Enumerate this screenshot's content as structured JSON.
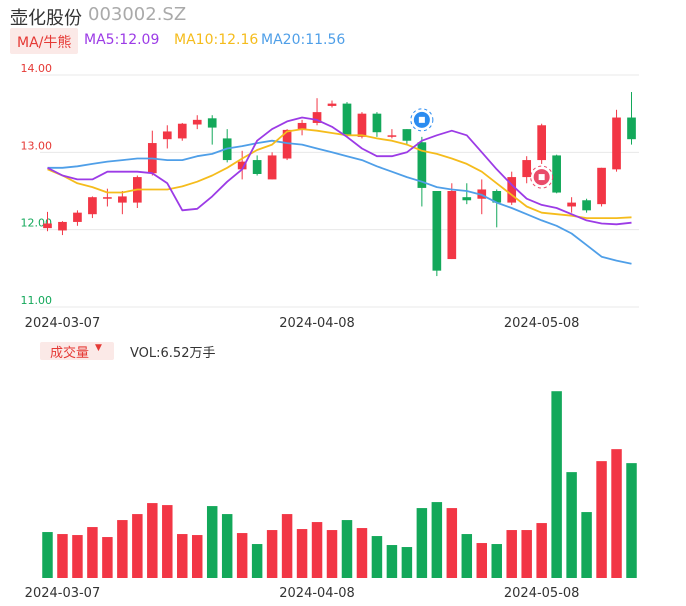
{
  "header": {
    "name": "壶化股份",
    "code": "003002.SZ",
    "ma_label": "MA/牛熊",
    "ma5": "MA5:12.09",
    "ma10": "MA10:12.16",
    "ma20": "MA20:11.56"
  },
  "volume_header": {
    "label": "成交量",
    "caret": "▼",
    "value": "VOL:6.52万手"
  },
  "colors": {
    "up": "#f23645",
    "down": "#13a85a",
    "ma5": "#9c3be6",
    "ma10": "#f5bc1c",
    "ma20": "#4f9fe8",
    "axis_label_red": "#e53935",
    "axis_label_green": "#13a85a"
  },
  "chart_data": [
    {
      "type": "candlestick",
      "y_ticks": [
        "14.00",
        "13.00",
        "12.00",
        "11.00"
      ],
      "ylim": [
        11.0,
        14.0
      ],
      "x_ticks": [
        {
          "label": "2024-03-07",
          "index": 1
        },
        {
          "label": "2024-04-08",
          "index": 18
        },
        {
          "label": "2024-05-08",
          "index": 33
        }
      ],
      "candles": [
        {
          "o": 12.02,
          "h": 12.23,
          "l": 11.98,
          "c": 12.08
        },
        {
          "o": 11.99,
          "h": 12.11,
          "l": 11.93,
          "c": 12.1
        },
        {
          "o": 12.1,
          "h": 12.25,
          "l": 12.05,
          "c": 12.22
        },
        {
          "o": 12.2,
          "h": 12.43,
          "l": 12.15,
          "c": 12.42
        },
        {
          "o": 12.4,
          "h": 12.53,
          "l": 12.3,
          "c": 12.42
        },
        {
          "o": 12.35,
          "h": 12.5,
          "l": 12.2,
          "c": 12.43
        },
        {
          "o": 12.35,
          "h": 12.7,
          "l": 12.28,
          "c": 12.68
        },
        {
          "o": 12.73,
          "h": 13.28,
          "l": 12.7,
          "c": 13.12
        },
        {
          "o": 13.17,
          "h": 13.35,
          "l": 13.05,
          "c": 13.27
        },
        {
          "o": 13.18,
          "h": 13.38,
          "l": 13.15,
          "c": 13.37
        },
        {
          "o": 13.36,
          "h": 13.48,
          "l": 13.3,
          "c": 13.42
        },
        {
          "o": 13.44,
          "h": 13.48,
          "l": 13.1,
          "c": 13.32
        },
        {
          "o": 13.18,
          "h": 13.3,
          "l": 12.87,
          "c": 12.9
        },
        {
          "o": 12.78,
          "h": 13.02,
          "l": 12.65,
          "c": 12.88
        },
        {
          "o": 12.9,
          "h": 12.96,
          "l": 12.7,
          "c": 12.72
        },
        {
          "o": 12.65,
          "h": 13.0,
          "l": 12.65,
          "c": 12.96
        },
        {
          "o": 12.92,
          "h": 13.3,
          "l": 12.9,
          "c": 13.29
        },
        {
          "o": 13.3,
          "h": 13.42,
          "l": 13.22,
          "c": 13.38
        },
        {
          "o": 13.38,
          "h": 13.7,
          "l": 13.35,
          "c": 13.52
        },
        {
          "o": 13.6,
          "h": 13.67,
          "l": 13.58,
          "c": 13.63
        },
        {
          "o": 13.63,
          "h": 13.65,
          "l": 13.2,
          "c": 13.22
        },
        {
          "o": 13.2,
          "h": 13.52,
          "l": 13.18,
          "c": 13.5
        },
        {
          "o": 13.5,
          "h": 13.52,
          "l": 13.2,
          "c": 13.26
        },
        {
          "o": 13.22,
          "h": 13.3,
          "l": 13.18,
          "c": 13.22
        },
        {
          "o": 13.3,
          "h": 13.3,
          "l": 13.1,
          "c": 13.15
        },
        {
          "o": 13.13,
          "h": 13.2,
          "l": 12.3,
          "c": 12.54
        },
        {
          "o": 12.5,
          "h": 12.5,
          "l": 11.4,
          "c": 11.47
        },
        {
          "o": 11.62,
          "h": 12.6,
          "l": 11.62,
          "c": 12.5
        },
        {
          "o": 12.42,
          "h": 12.6,
          "l": 12.33,
          "c": 12.38
        },
        {
          "o": 12.4,
          "h": 12.65,
          "l": 12.2,
          "c": 12.52
        },
        {
          "o": 12.5,
          "h": 12.52,
          "l": 12.03,
          "c": 12.35
        },
        {
          "o": 12.35,
          "h": 12.75,
          "l": 12.32,
          "c": 12.68
        },
        {
          "o": 12.68,
          "h": 12.95,
          "l": 12.6,
          "c": 12.9
        },
        {
          "o": 12.9,
          "h": 13.37,
          "l": 12.85,
          "c": 13.35
        },
        {
          "o": 12.96,
          "h": 12.97,
          "l": 12.47,
          "c": 12.48
        },
        {
          "o": 12.3,
          "h": 12.42,
          "l": 12.22,
          "c": 12.35
        },
        {
          "o": 12.38,
          "h": 12.4,
          "l": 12.22,
          "c": 12.25
        },
        {
          "o": 12.33,
          "h": 12.8,
          "l": 12.3,
          "c": 12.8
        },
        {
          "o": 12.78,
          "h": 13.55,
          "l": 12.75,
          "c": 13.45
        },
        {
          "o": 13.45,
          "h": 13.78,
          "l": 13.1,
          "c": 13.17
        }
      ],
      "ma5": [
        12.8,
        12.7,
        12.65,
        12.65,
        12.75,
        12.75,
        12.75,
        12.73,
        12.6,
        12.25,
        12.27,
        12.43,
        12.62,
        12.78,
        13.15,
        13.3,
        13.4,
        13.45,
        13.42,
        13.33,
        13.2,
        13.05,
        12.95,
        12.95,
        13.0,
        13.15,
        13.22,
        13.28,
        13.22,
        13.0,
        12.78,
        12.58,
        12.4,
        12.32,
        12.28,
        12.2,
        12.12,
        12.08,
        12.07,
        12.09
      ],
      "ma10": [
        12.78,
        12.7,
        12.6,
        12.55,
        12.48,
        12.48,
        12.52,
        12.52,
        12.52,
        12.56,
        12.62,
        12.7,
        12.8,
        12.92,
        13.03,
        13.1,
        13.27,
        13.3,
        13.28,
        13.25,
        13.22,
        13.22,
        13.18,
        13.15,
        13.1,
        13.02,
        12.98,
        12.92,
        12.85,
        12.75,
        12.6,
        12.45,
        12.3,
        12.22,
        12.2,
        12.18,
        12.15,
        12.15,
        12.15,
        12.16
      ],
      "ma20": [
        12.8,
        12.8,
        12.82,
        12.85,
        12.88,
        12.9,
        12.92,
        12.92,
        12.9,
        12.9,
        12.95,
        12.98,
        13.05,
        13.08,
        13.12,
        13.15,
        13.12,
        13.1,
        13.05,
        13.0,
        12.95,
        12.9,
        12.82,
        12.75,
        12.68,
        12.62,
        12.55,
        12.52,
        12.5,
        12.45,
        12.35,
        12.28,
        12.2,
        12.12,
        12.05,
        11.95,
        11.8,
        11.65,
        11.6,
        11.56
      ]
    },
    {
      "type": "bar",
      "name": "成交量",
      "x_ticks": [
        {
          "label": "2024-03-07",
          "index": 1
        },
        {
          "label": "2024-04-08",
          "index": 18
        },
        {
          "label": "2024-05-08",
          "index": 33
        }
      ],
      "values": [
        0.46,
        0.44,
        0.43,
        0.51,
        0.41,
        0.58,
        0.64,
        0.75,
        0.73,
        0.44,
        0.43,
        0.72,
        0.64,
        0.45,
        0.34,
        0.48,
        0.64,
        0.49,
        0.56,
        0.48,
        0.58,
        0.5,
        0.42,
        0.33,
        0.31,
        0.7,
        0.76,
        0.7,
        0.44,
        0.35,
        0.34,
        0.48,
        0.48,
        0.55,
        1.87,
        1.06,
        0.66,
        1.17,
        1.29,
        1.15
      ],
      "direction": [
        "down",
        "up",
        "up",
        "up",
        "up",
        "up",
        "up",
        "up",
        "up",
        "up",
        "up",
        "down",
        "down",
        "up",
        "down",
        "up",
        "up",
        "up",
        "up",
        "up",
        "down",
        "up",
        "down",
        "down",
        "down",
        "down",
        "down",
        "up",
        "down",
        "up",
        "down",
        "up",
        "up",
        "up",
        "down",
        "down",
        "down",
        "up",
        "up",
        "down"
      ]
    }
  ]
}
